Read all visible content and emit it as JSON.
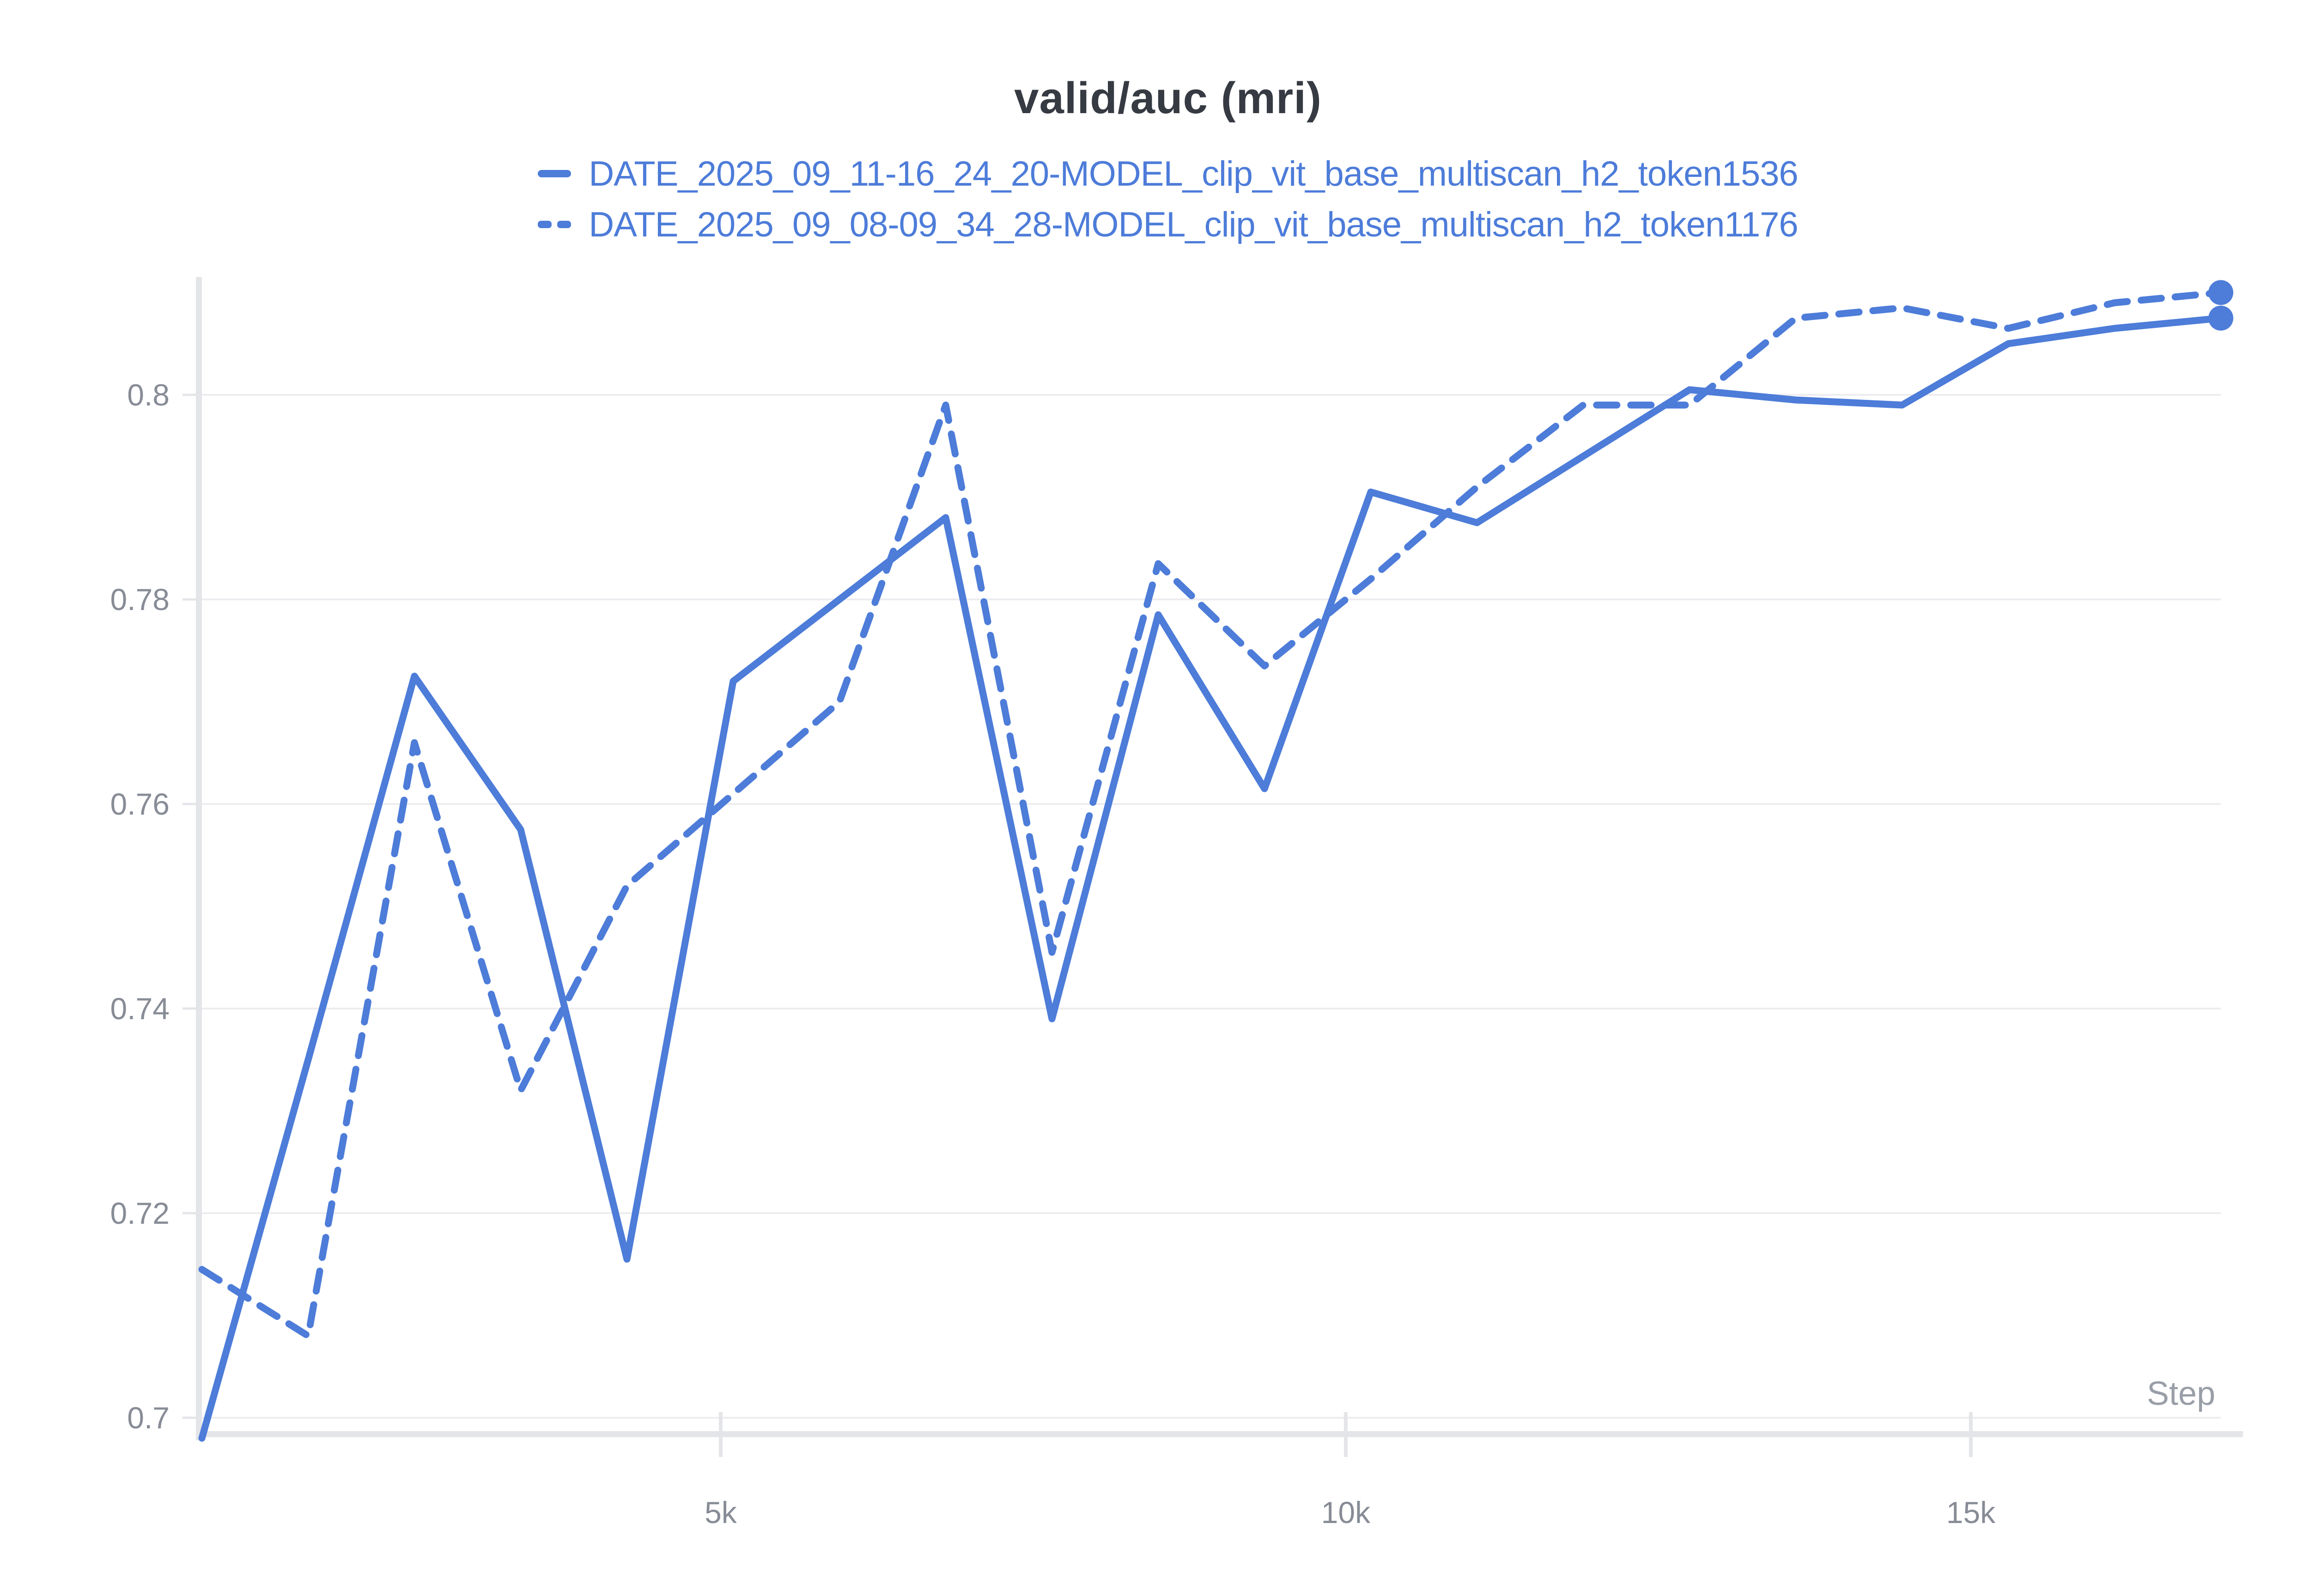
{
  "chart": {
    "colors": {
      "line_blue": "#4d7cd9",
      "title_text": "#363a42",
      "tick_text": "#878c96",
      "axis_label_text": "#999ea7",
      "gridline": "#ededf0",
      "axis_line": "#e4e5e8"
    }
  },
  "chart_data": {
    "type": "line",
    "title": "valid/auc (mri)",
    "xlabel": "Step",
    "ylabel": "",
    "grid": "horizontal",
    "legend_position": "top",
    "xlim": [
      850,
      17000
    ],
    "ylim": [
      0.698,
      0.8105
    ],
    "x_ticks": [
      {
        "value": 5000,
        "label": "5k"
      },
      {
        "value": 10000,
        "label": "10k"
      },
      {
        "value": 15000,
        "label": "15k"
      }
    ],
    "y_ticks": [
      {
        "value": 0.8,
        "label": "0.8"
      },
      {
        "value": 0.78,
        "label": "0.78"
      },
      {
        "value": 0.76,
        "label": "0.76"
      },
      {
        "value": 0.74,
        "label": "0.74"
      },
      {
        "value": 0.72,
        "label": "0.72"
      },
      {
        "value": 0.7,
        "label": "0.7"
      }
    ],
    "x": [
      850,
      1700,
      2550,
      3400,
      4250,
      5100,
      5950,
      6800,
      7650,
      8500,
      9350,
      10200,
      11050,
      11900,
      12750,
      13600,
      14450,
      15300,
      16150,
      17000
    ],
    "series": [
      {
        "name": "DATE_2025_09_11-16_24_20-MODEL_clip_vit_base_multiscan_h2_token1536",
        "style": "solid",
        "values": [
          0.698,
          0.735,
          0.7725,
          0.7575,
          0.7155,
          0.772,
          0.78,
          0.788,
          0.739,
          0.7785,
          0.7615,
          0.7905,
          0.7875,
          0.794,
          0.8005,
          0.7995,
          0.799,
          0.805,
          0.8065,
          0.8075
        ]
      },
      {
        "name": "DATE_2025_09_08-09_34_28-MODEL_clip_vit_base_multiscan_h2_token1176",
        "style": "dashed",
        "values": [
          0.7145,
          0.708,
          0.766,
          0.732,
          0.752,
          0.761,
          0.77,
          0.799,
          0.7455,
          0.7835,
          0.7735,
          0.782,
          0.791,
          0.799,
          0.799,
          0.8075,
          0.8085,
          0.8065,
          0.809,
          0.81
        ]
      }
    ]
  }
}
